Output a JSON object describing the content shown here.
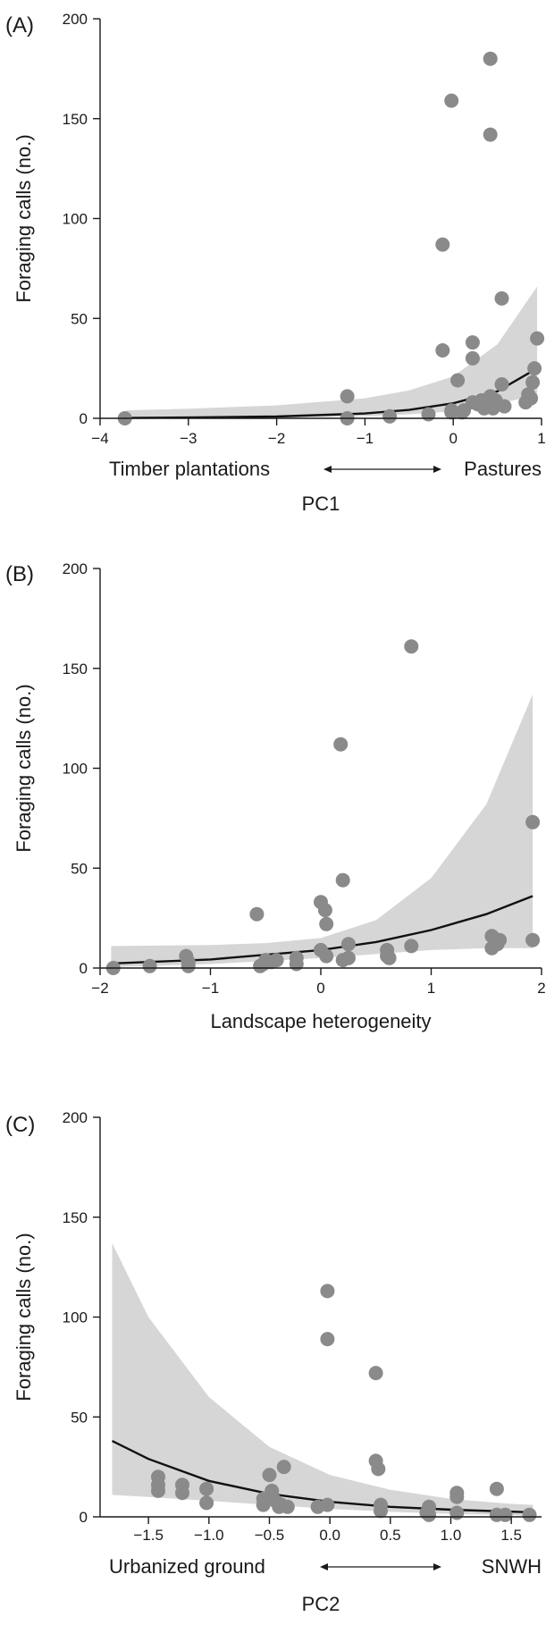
{
  "chart_data": [
    {
      "type": "scatter",
      "panel_label": "(A)",
      "ylabel": "Foraging calls (no.)",
      "xlabel": "PC1",
      "gradient_left": "Timber plantations",
      "gradient_right": "Pastures",
      "xlim": [
        -4,
        1
      ],
      "ylim": [
        0,
        200
      ],
      "xticks": [
        "−4",
        "−3",
        "−2",
        "−1",
        "0",
        "1"
      ],
      "xtick_values": [
        -4,
        -3,
        -2,
        -1,
        0,
        1
      ],
      "yticks": [
        "0",
        "50",
        "100",
        "150",
        "200"
      ],
      "ytick_values": [
        0,
        50,
        100,
        150,
        200
      ],
      "points": [
        [
          -3.72,
          0
        ],
        [
          -1.2,
          11
        ],
        [
          -1.2,
          0
        ],
        [
          -0.72,
          1
        ],
        [
          -0.28,
          2
        ],
        [
          -0.12,
          87
        ],
        [
          -0.12,
          34
        ],
        [
          -0.02,
          159
        ],
        [
          -0.02,
          4
        ],
        [
          -0.02,
          3
        ],
        [
          0.05,
          19
        ],
        [
          0.1,
          3
        ],
        [
          0.12,
          4
        ],
        [
          0.22,
          30
        ],
        [
          0.22,
          38
        ],
        [
          0.22,
          8
        ],
        [
          0.28,
          7
        ],
        [
          0.32,
          9
        ],
        [
          0.35,
          5
        ],
        [
          0.42,
          180
        ],
        [
          0.42,
          142
        ],
        [
          0.42,
          11
        ],
        [
          0.45,
          5
        ],
        [
          0.48,
          9
        ],
        [
          0.55,
          60
        ],
        [
          0.55,
          17
        ],
        [
          0.58,
          6
        ],
        [
          0.82,
          8
        ],
        [
          0.85,
          12
        ],
        [
          0.88,
          10
        ],
        [
          0.9,
          18
        ],
        [
          0.92,
          25
        ],
        [
          0.95,
          40
        ]
      ],
      "fit": [
        [
          -3.7,
          0.2
        ],
        [
          -3,
          0.4
        ],
        [
          -2,
          0.9
        ],
        [
          -1,
          2.4
        ],
        [
          -0.5,
          4.2
        ],
        [
          0,
          7.5
        ],
        [
          0.5,
          13.5
        ],
        [
          0.95,
          25
        ]
      ],
      "band_upper": [
        [
          -3.7,
          4
        ],
        [
          -3,
          4.8
        ],
        [
          -2,
          6.5
        ],
        [
          -1,
          10
        ],
        [
          -0.5,
          14
        ],
        [
          0,
          21
        ],
        [
          0.5,
          37
        ],
        [
          0.95,
          66
        ]
      ],
      "band_lower": [
        [
          -3.7,
          0
        ],
        [
          -3,
          0
        ],
        [
          -2,
          0.3
        ],
        [
          -1,
          1
        ],
        [
          -0.5,
          2
        ],
        [
          0,
          3.5
        ],
        [
          0.5,
          7
        ],
        [
          0.95,
          12
        ]
      ],
      "grid": false
    },
    {
      "type": "scatter",
      "panel_label": "(B)",
      "ylabel": "Foraging calls (no.)",
      "xlabel": "Landscape heterogeneity",
      "xlim": [
        -2,
        2
      ],
      "ylim": [
        0,
        200
      ],
      "xticks": [
        "−2",
        "−1",
        "0",
        "1",
        "2"
      ],
      "xtick_values": [
        -2,
        -1,
        0,
        1,
        2
      ],
      "yticks": [
        "0",
        "50",
        "100",
        "150",
        "200"
      ],
      "ytick_values": [
        0,
        50,
        100,
        150,
        200
      ],
      "points": [
        [
          -1.88,
          0
        ],
        [
          -1.55,
          1
        ],
        [
          -1.22,
          6
        ],
        [
          -1.2,
          3
        ],
        [
          -1.2,
          1
        ],
        [
          -0.58,
          27
        ],
        [
          -0.55,
          1
        ],
        [
          -0.52,
          2
        ],
        [
          -0.5,
          4
        ],
        [
          -0.45,
          3
        ],
        [
          -0.4,
          4
        ],
        [
          -0.22,
          5
        ],
        [
          -0.22,
          2
        ],
        [
          0.0,
          33
        ],
        [
          0.0,
          9
        ],
        [
          0.04,
          29
        ],
        [
          0.05,
          22
        ],
        [
          0.05,
          6
        ],
        [
          0.18,
          112
        ],
        [
          0.2,
          44
        ],
        [
          0.2,
          4
        ],
        [
          0.25,
          12
        ],
        [
          0.25,
          5
        ],
        [
          0.6,
          9
        ],
        [
          0.6,
          6
        ],
        [
          0.62,
          5
        ],
        [
          0.82,
          161
        ],
        [
          0.82,
          11
        ],
        [
          1.55,
          16
        ],
        [
          1.55,
          10
        ],
        [
          1.6,
          12
        ],
        [
          1.62,
          14
        ],
        [
          1.92,
          73
        ],
        [
          1.92,
          14
        ]
      ],
      "fit": [
        [
          -1.9,
          2.3
        ],
        [
          -1,
          4.3
        ],
        [
          0,
          9
        ],
        [
          0.5,
          13
        ],
        [
          1,
          19
        ],
        [
          1.5,
          27
        ],
        [
          1.92,
          36
        ]
      ],
      "band_upper": [
        [
          -1.9,
          11
        ],
        [
          -1,
          11.5
        ],
        [
          -0.5,
          12.5
        ],
        [
          0,
          15
        ],
        [
          0.5,
          24
        ],
        [
          1,
          45
        ],
        [
          1.5,
          82
        ],
        [
          1.92,
          137
        ]
      ],
      "band_lower": [
        [
          -1.9,
          0.5
        ],
        [
          -1,
          2
        ],
        [
          0,
          5
        ],
        [
          0.5,
          7
        ],
        [
          1,
          9
        ],
        [
          1.5,
          10
        ],
        [
          1.92,
          10
        ]
      ],
      "grid": false
    },
    {
      "type": "scatter",
      "panel_label": "(C)",
      "ylabel": "Foraging calls (no.)",
      "xlabel": "PC2",
      "gradient_left": "Urbanized ground",
      "gradient_right": "SNWH",
      "xlim": [
        -1.9,
        1.75
      ],
      "ylim": [
        0,
        200
      ],
      "xticks": [
        "−1.5",
        "−1.0",
        "−0.5",
        "0.0",
        "0.5",
        "1.0",
        "1.5"
      ],
      "xtick_values": [
        -1.5,
        -1.0,
        -0.5,
        0.0,
        0.5,
        1.0,
        1.5
      ],
      "yticks": [
        "0",
        "50",
        "100",
        "150",
        "200"
      ],
      "ytick_values": [
        0,
        50,
        100,
        150,
        200
      ],
      "points": [
        [
          -1.42,
          20
        ],
        [
          -1.42,
          16
        ],
        [
          -1.42,
          13
        ],
        [
          -1.22,
          16
        ],
        [
          -1.22,
          12
        ],
        [
          -1.02,
          14
        ],
        [
          -1.02,
          7
        ],
        [
          -0.55,
          9
        ],
        [
          -0.55,
          6
        ],
        [
          -0.5,
          21
        ],
        [
          -0.48,
          13
        ],
        [
          -0.45,
          8
        ],
        [
          -0.42,
          5
        ],
        [
          -0.4,
          6
        ],
        [
          -0.38,
          25
        ],
        [
          -0.35,
          5
        ],
        [
          -0.1,
          5
        ],
        [
          -0.02,
          113
        ],
        [
          -0.02,
          89
        ],
        [
          -0.02,
          6
        ],
        [
          0.38,
          72
        ],
        [
          0.38,
          28
        ],
        [
          0.4,
          24
        ],
        [
          0.42,
          6
        ],
        [
          0.42,
          3
        ],
        [
          0.8,
          2
        ],
        [
          0.82,
          5
        ],
        [
          0.82,
          1
        ],
        [
          1.05,
          12
        ],
        [
          1.05,
          10
        ],
        [
          1.05,
          2
        ],
        [
          1.38,
          14
        ],
        [
          1.38,
          1
        ],
        [
          1.45,
          1
        ],
        [
          1.65,
          1
        ]
      ],
      "fit": [
        [
          -1.8,
          38
        ],
        [
          -1.5,
          29
        ],
        [
          -1,
          18
        ],
        [
          -0.5,
          11.5
        ],
        [
          0,
          7.5
        ],
        [
          0.5,
          5
        ],
        [
          1,
          3.6
        ],
        [
          1.5,
          2.6
        ],
        [
          1.68,
          2.3
        ]
      ],
      "band_upper": [
        [
          -1.8,
          137
        ],
        [
          -1.5,
          100
        ],
        [
          -1,
          60
        ],
        [
          -0.5,
          35
        ],
        [
          0,
          21
        ],
        [
          0.5,
          13.5
        ],
        [
          1,
          9
        ],
        [
          1.5,
          6.5
        ],
        [
          1.68,
          6
        ]
      ],
      "band_lower": [
        [
          -1.8,
          11
        ],
        [
          -1.5,
          10
        ],
        [
          -1,
          8
        ],
        [
          -0.5,
          6
        ],
        [
          0,
          4
        ],
        [
          0.5,
          2.5
        ],
        [
          1,
          1.5
        ],
        [
          1.5,
          0.8
        ],
        [
          1.68,
          0.5
        ]
      ],
      "grid": false
    }
  ]
}
